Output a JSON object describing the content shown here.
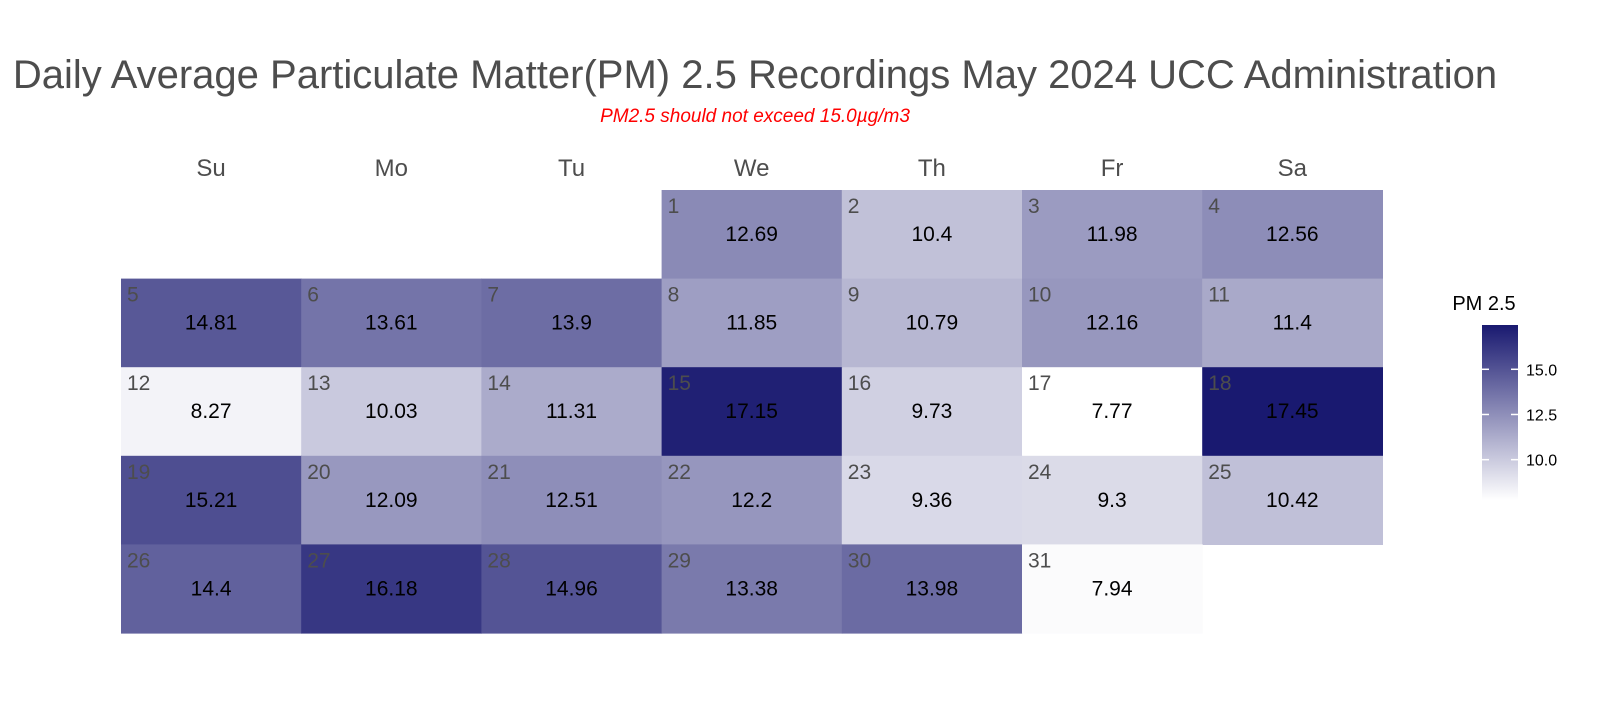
{
  "chart_data": {
    "type": "heatmap",
    "title": "Daily Average Particulate Matter(PM) 2.5 Recordings May 2024 UCC Administration",
    "subtitle": "PM2.5 should not exceed 15.0µg/m3",
    "weekdays": [
      "Su",
      "Mo",
      "Tu",
      "We",
      "Th",
      "Fr",
      "Sa"
    ],
    "first_weekday_index": 3,
    "days": [
      1,
      2,
      3,
      4,
      5,
      6,
      7,
      8,
      9,
      10,
      11,
      12,
      13,
      14,
      15,
      16,
      17,
      18,
      19,
      20,
      21,
      22,
      23,
      24,
      25,
      26,
      27,
      28,
      29,
      30,
      31
    ],
    "values": [
      "12.69",
      "10.4",
      "11.98",
      "12.56",
      "14.81",
      "13.61",
      "13.9",
      "11.85",
      "10.79",
      "12.16",
      "11.4",
      "8.27",
      "10.03",
      "11.31",
      "17.15",
      "9.73",
      "7.77",
      "17.45",
      "15.21",
      "12.09",
      "12.51",
      "12.2",
      "9.36",
      "9.3",
      "10.42",
      "14.4",
      "16.18",
      "14.96",
      "13.38",
      "13.98",
      "7.94"
    ],
    "legend": {
      "title": "PM 2.5",
      "ticks": [
        "10.0",
        "12.5",
        "15.0"
      ],
      "range": [
        7.77,
        17.45
      ],
      "low_color": "#ffffff",
      "high_color": "#191970"
    }
  }
}
